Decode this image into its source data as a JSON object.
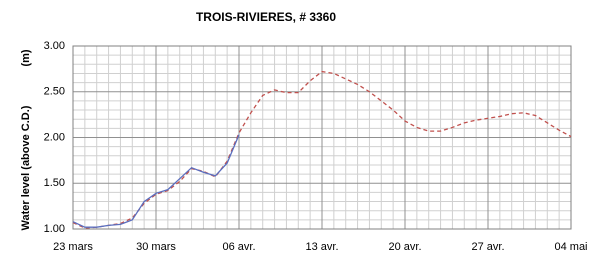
{
  "chart_data": {
    "type": "line",
    "title": "TROIS-RIVIERES, # 3360",
    "y_label": "Water level (above C.D.)",
    "y_unit": "(m)",
    "xlim": [
      0,
      42
    ],
    "xticks": [
      {
        "value": 0,
        "label": "23 mars"
      },
      {
        "value": 7,
        "label": "30 mars"
      },
      {
        "value": 14,
        "label": "06 avr."
      },
      {
        "value": 21,
        "label": "13 avr."
      },
      {
        "value": 28,
        "label": "20 avr."
      },
      {
        "value": 35,
        "label": "27 avr."
      },
      {
        "value": 42,
        "label": "04 mai"
      }
    ],
    "ylim": [
      1,
      3
    ],
    "yticks": [
      {
        "value": 1,
        "label": "1.00"
      },
      {
        "value": 1.5,
        "label": "1.50"
      },
      {
        "value": 2,
        "label": "2.00"
      },
      {
        "value": 2.5,
        "label": "2.50"
      },
      {
        "value": 3,
        "label": "3.00"
      }
    ],
    "grid": true,
    "series": [
      {
        "color": "#c0504d",
        "dashed": true,
        "x": [
          0,
          1,
          2,
          3,
          4,
          5,
          6,
          7,
          8,
          9,
          10,
          11,
          12,
          13,
          14,
          15,
          16,
          17,
          18,
          19,
          20,
          21,
          22,
          23,
          24,
          25,
          26,
          27,
          28,
          29,
          30,
          31,
          32,
          33,
          34,
          35,
          36,
          37,
          38,
          39,
          40,
          41,
          42
        ],
        "values": [
          1.07,
          1.01,
          1.02,
          1.04,
          1.06,
          1.12,
          1.28,
          1.38,
          1.42,
          1.52,
          1.66,
          1.63,
          1.57,
          1.74,
          2.05,
          2.27,
          2.46,
          2.52,
          2.49,
          2.49,
          2.62,
          2.72,
          2.7,
          2.64,
          2.58,
          2.5,
          2.4,
          2.3,
          2.18,
          2.11,
          2.07,
          2.07,
          2.11,
          2.16,
          2.19,
          2.21,
          2.23,
          2.26,
          2.27,
          2.24,
          2.16,
          2.08,
          2.01
        ]
      },
      {
        "color": "#5b6fbf",
        "dashed": false,
        "x": [
          0,
          1,
          2,
          3,
          4,
          5,
          6,
          7,
          8,
          9,
          10,
          11,
          12,
          13,
          14
        ],
        "values": [
          1.08,
          1.02,
          1.02,
          1.04,
          1.05,
          1.1,
          1.3,
          1.39,
          1.43,
          1.55,
          1.67,
          1.62,
          1.58,
          1.72,
          2.03
        ]
      }
    ]
  }
}
